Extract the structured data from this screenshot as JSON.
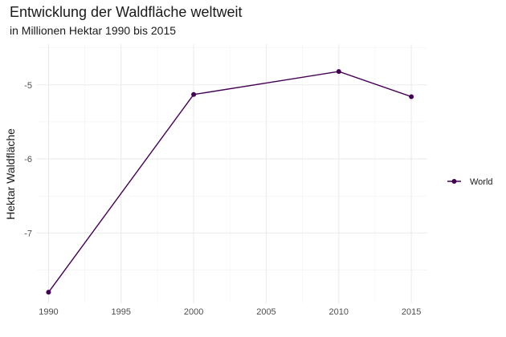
{
  "chart_data": {
    "type": "line",
    "title": "Entwicklung der Waldfläche weltweit",
    "subtitle": "in Millionen Hektar 1990 bis 2015",
    "xlabel": "",
    "ylabel": "Hektar Waldfläche",
    "x": [
      1990,
      2000,
      2010,
      2015
    ],
    "series": [
      {
        "name": "World",
        "values": [
          -7.8,
          -5.13,
          -4.82,
          -5.16
        ],
        "color": "#440154"
      }
    ],
    "x_ticks": [
      1990,
      1995,
      2000,
      2005,
      2010,
      2015
    ],
    "x_tick_labels": [
      "1990",
      "1995",
      "2000",
      "2005",
      "2010",
      "2015"
    ],
    "y_ticks": [
      -5,
      -6,
      -7
    ],
    "y_tick_labels": [
      "-5",
      "-6",
      "-7"
    ],
    "xlim": [
      1989.2,
      2016.1
    ],
    "ylim": [
      -7.95,
      -4.45
    ],
    "grid": true,
    "legend_position": "right"
  }
}
